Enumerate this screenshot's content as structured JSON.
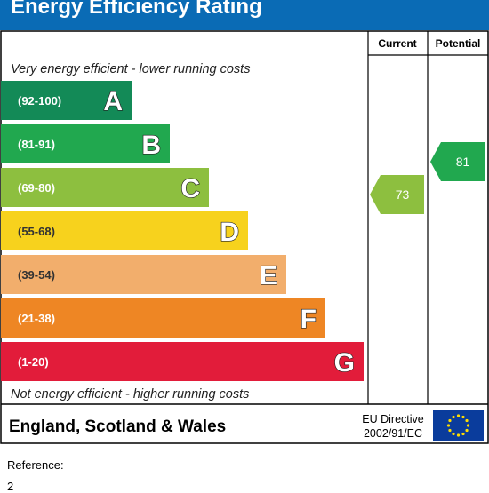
{
  "chart_data": {
    "type": "bar",
    "title": "Energy Efficiency Rating",
    "top_caption": "Very energy efficient - lower running costs",
    "bottom_caption": "Not energy efficient - higher running costs",
    "categories": [
      "A",
      "B",
      "C",
      "D",
      "E",
      "F",
      "G"
    ],
    "ranges": [
      "(92-100)",
      "(81-91)",
      "(69-80)",
      "(55-68)",
      "(39-54)",
      "(21-38)",
      "(1-20)"
    ],
    "colors": [
      "#138a57",
      "#21a84f",
      "#8dbf3f",
      "#f7d21d",
      "#f2ae6c",
      "#ee8624",
      "#e21c3a"
    ],
    "columns": [
      {
        "label": "Current",
        "value": 73,
        "band": "C",
        "color": "#8dbf3f"
      },
      {
        "label": "Potential",
        "value": 81,
        "band": "B",
        "color": "#21a84f"
      }
    ],
    "footer": {
      "region": "England, Scotland & Wales",
      "directive_line1": "EU Directive",
      "directive_line2": "2002/91/EC"
    }
  },
  "reference": {
    "label": "Reference:",
    "value": "2"
  }
}
